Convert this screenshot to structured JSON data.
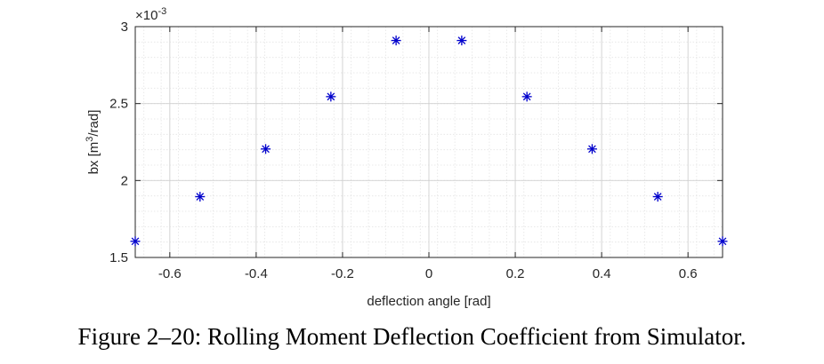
{
  "chart_data": {
    "type": "scatter",
    "marker": "asterisk",
    "marker_color": "#0000cc",
    "series": [
      {
        "name": "bx",
        "x": [
          -0.68,
          -0.53,
          -0.378,
          -0.227,
          -0.076,
          0.076,
          0.227,
          0.378,
          0.53,
          0.68
        ],
        "y": [
          0.001605,
          0.001895,
          0.002205,
          0.002545,
          0.00291,
          0.00291,
          0.002545,
          0.002205,
          0.001895,
          0.001605
        ]
      }
    ],
    "xlim": [
      -0.68,
      0.68
    ],
    "ylim": [
      0.0015,
      0.003
    ],
    "xticks": [
      -0.6,
      -0.4,
      -0.2,
      0,
      0.2,
      0.4,
      0.6
    ],
    "xtick_labels": [
      "-0.6",
      "-0.4",
      "-0.2",
      "0",
      "0.2",
      "0.4",
      "0.6"
    ],
    "yticks": [
      0.0015,
      0.002,
      0.0025,
      0.003
    ],
    "ytick_labels": [
      "1.5",
      "2",
      "2.5",
      "3"
    ],
    "y_multiplier": "×10",
    "y_multiplier_exp": "-3",
    "xlabel": "deflection angle [rad]",
    "ylabel_prefix": "bx [m",
    "ylabel_sup": "3",
    "ylabel_suffix": "/rad]",
    "grid": true,
    "minor_grid": true
  },
  "caption": "Figure 2–20: Rolling Moment Deflection Coefficient from Simulator."
}
